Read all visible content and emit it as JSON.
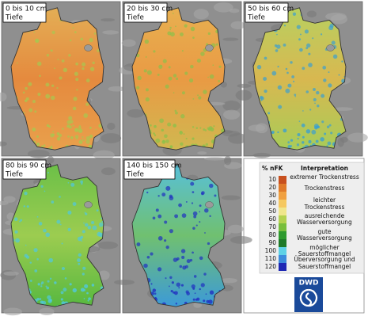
{
  "maps": [
    {
      "label": [
        "0 bis 10 cm",
        "Tiefe"
      ],
      "colors": [
        "#e3ae55",
        "#e58a3e",
        "#e9a04c",
        "#a8c850"
      ]
    },
    {
      "label": [
        "20 bis 30 cm",
        "Tiefe"
      ],
      "colors": [
        "#e8b050",
        "#e99a44",
        "#d0b850",
        "#8cc04a"
      ]
    },
    {
      "label": [
        "50 bis 60 cm",
        "Tiefe"
      ],
      "colors": [
        "#b8d060",
        "#d8b850",
        "#a8cc58",
        "#3ca0d0"
      ]
    },
    {
      "label": [
        "80 bis 90 cm",
        "Tiefe"
      ],
      "colors": [
        "#6cc048",
        "#9ccc50",
        "#58b840",
        "#50c8e0"
      ]
    },
    {
      "label": [
        "140 bis 150 cm",
        "Tiefe"
      ],
      "colors": [
        "#58c0d8",
        "#70c070",
        "#3c9ad8",
        "#2030c0"
      ]
    }
  ],
  "legend": {
    "unit": "% nFK",
    "title": "Interpretation",
    "ticks": [
      10,
      20,
      30,
      40,
      50,
      60,
      70,
      80,
      90,
      100,
      110,
      120
    ],
    "colors": [
      "#c8501e",
      "#e07a2a",
      "#f0a040",
      "#f5c860",
      "#f0e68c",
      "#b4d250",
      "#78be3c",
      "#2e9a2e",
      "#1e7a28",
      "#5fd2e6",
      "#3c8cdc",
      "#1e28b4"
    ],
    "classes": [
      [
        "extremer Trockenstress"
      ],
      [
        "Trockenstress"
      ],
      [
        "leichter",
        "Trockenstress"
      ],
      [
        "ausreichende",
        "Wasserversorgung"
      ],
      [
        "gute",
        "Wasserversorgung"
      ],
      [
        "möglicher",
        "Sauerstoffmangel"
      ],
      [
        "Überversorgung und",
        "Sauerstoffmangel"
      ]
    ],
    "logo": "DWD"
  }
}
